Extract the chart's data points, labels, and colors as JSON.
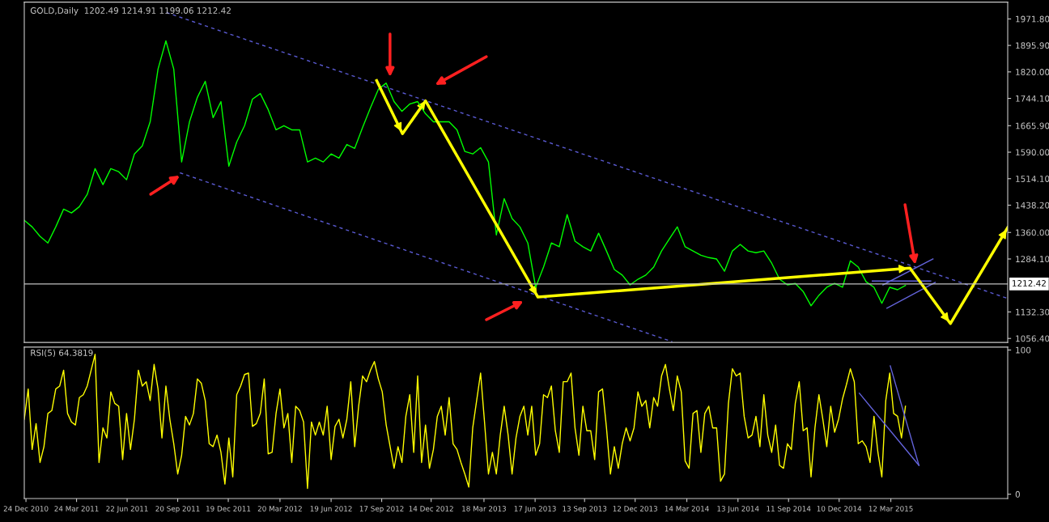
{
  "chart_data": [
    {
      "type": "line",
      "title": "GOLD,Daily  1202.49 1214.91 1199.06 1212.42",
      "xlim": [
        "2010-12-21",
        "2015-10-06"
      ],
      "ylim": [
        1045,
        2020
      ],
      "yticks": [
        {
          "value": 1971.8,
          "label": "1971.80"
        },
        {
          "value": 1895.9,
          "label": "1895.90"
        },
        {
          "value": 1820,
          "label": "1820.00"
        },
        {
          "value": 1744.1,
          "label": "1744.10"
        },
        {
          "value": 1665.9,
          "label": "1665.90"
        },
        {
          "value": 1590,
          "label": "1590.00"
        },
        {
          "value": 1514.1,
          "label": "1514.10"
        },
        {
          "value": 1438.2,
          "label": "1438.20"
        },
        {
          "value": 1360,
          "label": "1360.00"
        },
        {
          "value": 1284.1,
          "label": "1284.10"
        },
        {
          "value": 1132.3,
          "label": "1132.30"
        },
        {
          "value": 1056.4,
          "label": "1056.40"
        }
      ],
      "tick_labels": "y",
      "ref_lines": [
        {
          "axis": "y",
          "value": 1212.42,
          "label": "1212.42",
          "color": "#c0c0c0"
        }
      ],
      "series": [
        {
          "color": "#00ff00",
          "x": [
            "2010-12-21",
            "2011-01-04",
            "2011-01-18",
            "2011-02-01",
            "2011-02-15",
            "2011-03-01",
            "2011-03-15",
            "2011-03-29",
            "2011-04-12",
            "2011-04-26",
            "2011-05-10",
            "2011-05-24",
            "2011-06-07",
            "2011-06-21",
            "2011-07-05",
            "2011-07-19",
            "2011-08-02",
            "2011-08-16",
            "2011-08-30",
            "2011-09-13",
            "2011-09-27",
            "2011-10-11",
            "2011-10-25",
            "2011-11-08",
            "2011-11-22",
            "2011-12-06",
            "2011-12-20",
            "2012-01-03",
            "2012-01-17",
            "2012-01-31",
            "2012-02-14",
            "2012-02-28",
            "2012-03-13",
            "2012-03-27",
            "2012-04-10",
            "2012-04-24",
            "2012-05-08",
            "2012-05-22",
            "2012-06-05",
            "2012-06-19",
            "2012-07-03",
            "2012-07-17",
            "2012-07-31",
            "2012-08-14",
            "2012-08-28",
            "2012-09-11",
            "2012-09-25",
            "2012-10-09",
            "2012-10-23",
            "2012-11-06",
            "2012-11-20",
            "2012-12-04",
            "2012-12-18",
            "2013-01-01",
            "2013-01-15",
            "2013-01-29",
            "2013-02-12",
            "2013-02-26",
            "2013-03-12",
            "2013-03-26",
            "2013-04-09",
            "2013-04-23",
            "2013-05-07",
            "2013-05-21",
            "2013-06-04",
            "2013-06-18",
            "2013-07-02",
            "2013-07-16",
            "2013-07-30",
            "2013-08-13",
            "2013-08-27",
            "2013-09-10",
            "2013-09-24",
            "2013-10-08",
            "2013-10-22",
            "2013-11-05",
            "2013-11-19",
            "2013-12-03",
            "2013-12-17",
            "2013-12-31",
            "2014-01-14",
            "2014-01-28",
            "2014-02-11",
            "2014-02-25",
            "2014-03-11",
            "2014-03-25",
            "2014-04-08",
            "2014-04-22",
            "2014-05-06",
            "2014-05-20",
            "2014-06-03",
            "2014-06-17",
            "2014-07-01",
            "2014-07-15",
            "2014-07-29",
            "2014-08-12",
            "2014-08-26",
            "2014-09-09",
            "2014-09-23",
            "2014-10-07",
            "2014-10-21",
            "2014-11-04",
            "2014-11-18",
            "2014-12-02",
            "2014-12-16",
            "2014-12-30",
            "2015-01-13",
            "2015-01-27",
            "2015-02-10",
            "2015-02-24",
            "2015-03-10",
            "2015-03-24",
            "2015-04-07"
          ],
          "values": [
            1395,
            1376,
            1349,
            1330,
            1376,
            1427,
            1416,
            1434,
            1469,
            1543,
            1497,
            1543,
            1534,
            1511,
            1585,
            1608,
            1677,
            1828,
            1909,
            1828,
            1562,
            1677,
            1747,
            1793,
            1689,
            1735,
            1550,
            1619,
            1666,
            1742,
            1758,
            1712,
            1654,
            1666,
            1654,
            1654,
            1562,
            1573,
            1562,
            1585,
            1573,
            1612,
            1601,
            1661,
            1717,
            1770,
            1788,
            1735,
            1707,
            1728,
            1735,
            1700,
            1677,
            1677,
            1677,
            1654,
            1592,
            1585,
            1603,
            1562,
            1353,
            1457,
            1400,
            1376,
            1330,
            1203,
            1261,
            1330,
            1319,
            1411,
            1335,
            1319,
            1307,
            1358,
            1307,
            1254,
            1238,
            1210,
            1226,
            1238,
            1261,
            1307,
            1342,
            1376,
            1319,
            1307,
            1295,
            1288,
            1284,
            1249,
            1307,
            1326,
            1307,
            1302,
            1307,
            1272,
            1226,
            1210,
            1214,
            1191,
            1150,
            1180,
            1203,
            1214,
            1203,
            1279,
            1261,
            1219,
            1203,
            1157,
            1203,
            1196,
            1208
          ]
        },
        {
          "color": "#5a5ad2",
          "line_style": "dashed",
          "x": [
            "2011-08-31",
            "2015-10-06"
          ],
          "values": [
            1990,
            1171
          ]
        },
        {
          "color": "#5a5ad2",
          "line_style": "dashed",
          "x": [
            "2011-09-24",
            "2014-02-16"
          ],
          "values": [
            1531,
            1047
          ]
        },
        {
          "color": "#6464dc",
          "x": [
            "2015-03-05",
            "2015-05-30"
          ],
          "values": [
            1143,
            1217
          ]
        },
        {
          "color": "#6464dc",
          "x": [
            "2015-02-26",
            "2015-05-26"
          ],
          "values": [
            1210,
            1284
          ]
        },
        {
          "color": "#6464dc",
          "x": [
            "2015-02-07",
            "2015-05-22"
          ],
          "values": [
            1221,
            1221
          ]
        },
        {
          "color": "#ffff00",
          "x": [
            "2012-09-08",
            "2012-10-24",
            "2012-12-04",
            "2013-06-22",
            "2015-04-15",
            "2015-06-26",
            "2015-10-06"
          ],
          "values": [
            1795,
            1643,
            1737,
            1175,
            1258,
            1099,
            1374
          ]
        }
      ]
    },
    {
      "type": "line",
      "title": "RSI(5) 64.3819",
      "xlim": [
        "2010-12-21",
        "2015-10-06"
      ],
      "ylim": [
        -3,
        102
      ],
      "yticks": [
        0,
        100
      ],
      "xticks": [
        {
          "value": "2010-12-24",
          "label": "24 Dec 2010"
        },
        {
          "value": "2011-03-24",
          "label": "24 Mar 2011"
        },
        {
          "value": "2011-06-22",
          "label": "22 Jun 2011"
        },
        {
          "value": "2011-09-20",
          "label": "20 Sep 2011"
        },
        {
          "value": "2011-12-19",
          "label": "19 Dec 2011"
        },
        {
          "value": "2012-03-20",
          "label": "20 Mar 2012"
        },
        {
          "value": "2012-06-19",
          "label": "19 Jun 2012"
        },
        {
          "value": "2012-09-17",
          "label": "17 Sep 2012"
        },
        {
          "value": "2012-12-14",
          "label": "14 Dec 2012"
        },
        {
          "value": "2013-03-18",
          "label": "18 Mar 2013"
        },
        {
          "value": "2013-06-17",
          "label": "17 Jun 2013"
        },
        {
          "value": "2013-09-13",
          "label": "13 Sep 2013"
        },
        {
          "value": "2013-12-12",
          "label": "12 Dec 2013"
        },
        {
          "value": "2014-03-14",
          "label": "14 Mar 2014"
        },
        {
          "value": "2014-06-13",
          "label": "13 Jun 2014"
        },
        {
          "value": "2014-09-11",
          "label": "11 Sep 2014"
        },
        {
          "value": "2014-12-10",
          "label": "10 Dec 2014"
        },
        {
          "value": "2015-03-12",
          "label": "12 Mar 2015"
        }
      ],
      "series": [
        {
          "color": "#ffff00",
          "x": [
            "2010-12-21",
            "2010-12-28",
            "2011-01-04",
            "2011-01-11",
            "2011-01-18",
            "2011-01-25",
            "2011-02-01",
            "2011-02-08",
            "2011-02-15",
            "2011-02-22",
            "2011-03-01",
            "2011-03-08",
            "2011-03-15",
            "2011-03-22",
            "2011-03-29",
            "2011-04-05",
            "2011-04-12",
            "2011-04-19",
            "2011-04-26",
            "2011-05-03",
            "2011-05-10",
            "2011-05-17",
            "2011-05-24",
            "2011-05-31",
            "2011-06-07",
            "2011-06-14",
            "2011-06-21",
            "2011-06-28",
            "2011-07-05",
            "2011-07-12",
            "2011-07-19",
            "2011-07-26",
            "2011-08-02",
            "2011-08-09",
            "2011-08-16",
            "2011-08-23",
            "2011-08-30",
            "2011-09-06",
            "2011-09-13",
            "2011-09-20",
            "2011-09-27",
            "2011-10-04",
            "2011-10-11",
            "2011-10-18",
            "2011-10-25",
            "2011-11-01",
            "2011-11-08",
            "2011-11-15",
            "2011-11-22",
            "2011-11-29",
            "2011-12-06",
            "2011-12-13",
            "2011-12-20",
            "2011-12-27",
            "2012-01-03",
            "2012-01-10",
            "2012-01-17",
            "2012-01-24",
            "2012-01-31",
            "2012-02-07",
            "2012-02-14",
            "2012-02-21",
            "2012-02-28",
            "2012-03-06",
            "2012-03-13",
            "2012-03-20",
            "2012-03-27",
            "2012-04-03",
            "2012-04-10",
            "2012-04-17",
            "2012-04-24",
            "2012-05-01",
            "2012-05-08",
            "2012-05-15",
            "2012-05-22",
            "2012-05-29",
            "2012-06-05",
            "2012-06-12",
            "2012-06-19",
            "2012-06-26",
            "2012-07-03",
            "2012-07-10",
            "2012-07-17",
            "2012-07-24",
            "2012-07-31",
            "2012-08-07",
            "2012-08-14",
            "2012-08-21",
            "2012-08-28",
            "2012-09-04",
            "2012-09-11",
            "2012-09-18",
            "2012-09-25",
            "2012-10-02",
            "2012-10-09",
            "2012-10-16",
            "2012-10-23",
            "2012-10-30",
            "2012-11-06",
            "2012-11-13",
            "2012-11-20",
            "2012-11-27",
            "2012-12-04",
            "2012-12-11",
            "2012-12-18",
            "2012-12-25",
            "2013-01-01",
            "2013-01-08",
            "2013-01-15",
            "2013-01-22",
            "2013-01-29",
            "2013-02-05",
            "2013-02-12",
            "2013-02-19",
            "2013-02-26",
            "2013-03-05",
            "2013-03-12",
            "2013-03-19",
            "2013-03-26",
            "2013-04-02",
            "2013-04-09",
            "2013-04-16",
            "2013-04-23",
            "2013-04-30",
            "2013-05-07",
            "2013-05-14",
            "2013-05-21",
            "2013-05-28",
            "2013-06-04",
            "2013-06-11",
            "2013-06-18",
            "2013-06-25",
            "2013-07-02",
            "2013-07-09",
            "2013-07-16",
            "2013-07-23",
            "2013-07-30",
            "2013-08-06",
            "2013-08-13",
            "2013-08-20",
            "2013-08-27",
            "2013-09-03",
            "2013-09-10",
            "2013-09-17",
            "2013-09-24",
            "2013-10-01",
            "2013-10-08",
            "2013-10-15",
            "2013-10-22",
            "2013-10-29",
            "2013-11-05",
            "2013-11-12",
            "2013-11-19",
            "2013-11-26",
            "2013-12-03",
            "2013-12-10",
            "2013-12-17",
            "2013-12-24",
            "2013-12-31",
            "2014-01-07",
            "2014-01-14",
            "2014-01-21",
            "2014-01-28",
            "2014-02-04",
            "2014-02-11",
            "2014-02-18",
            "2014-02-25",
            "2014-03-04",
            "2014-03-11",
            "2014-03-18",
            "2014-03-25",
            "2014-04-01",
            "2014-04-08",
            "2014-04-15",
            "2014-04-22",
            "2014-04-29",
            "2014-05-06",
            "2014-05-13",
            "2014-05-20",
            "2014-05-27",
            "2014-06-03",
            "2014-06-10",
            "2014-06-17",
            "2014-06-24",
            "2014-07-01",
            "2014-07-08",
            "2014-07-15",
            "2014-07-22",
            "2014-07-29",
            "2014-08-05",
            "2014-08-12",
            "2014-08-19",
            "2014-08-26",
            "2014-09-02",
            "2014-09-09",
            "2014-09-16",
            "2014-09-23",
            "2014-09-30",
            "2014-10-07",
            "2014-10-14",
            "2014-10-21",
            "2014-10-28",
            "2014-11-04",
            "2014-11-11",
            "2014-11-18",
            "2014-11-25",
            "2014-12-02",
            "2014-12-09",
            "2014-12-16",
            "2014-12-23",
            "2014-12-30",
            "2015-01-06",
            "2015-01-13",
            "2015-01-20",
            "2015-01-27",
            "2015-02-03",
            "2015-02-10",
            "2015-02-17",
            "2015-02-24",
            "2015-03-03",
            "2015-03-10",
            "2015-03-17",
            "2015-03-24",
            "2015-03-31",
            "2015-04-07"
          ],
          "values": [
            52,
            73,
            31,
            49,
            22,
            33,
            56,
            58,
            73,
            75,
            86,
            56,
            50,
            48,
            67,
            69,
            75,
            86,
            97,
            22,
            46,
            39,
            71,
            63,
            61,
            24,
            56,
            31,
            52,
            86,
            75,
            78,
            65,
            90,
            73,
            39,
            75,
            52,
            35,
            14,
            27,
            54,
            48,
            56,
            80,
            77,
            65,
            35,
            33,
            41,
            29,
            7,
            39,
            12,
            69,
            75,
            83,
            84,
            47,
            49,
            56,
            80,
            28,
            29,
            56,
            73,
            46,
            56,
            22,
            61,
            58,
            50,
            4,
            50,
            41,
            50,
            41,
            61,
            24,
            47,
            52,
            39,
            52,
            78,
            33,
            61,
            82,
            78,
            86,
            92,
            80,
            71,
            48,
            33,
            18,
            33,
            22,
            54,
            69,
            29,
            82,
            22,
            48,
            18,
            31,
            54,
            61,
            41,
            67,
            35,
            31,
            22,
            14,
            5,
            46,
            65,
            84,
            50,
            14,
            29,
            14,
            41,
            61,
            41,
            14,
            39,
            54,
            61,
            41,
            61,
            27,
            35,
            69,
            67,
            75,
            44,
            29,
            78,
            78,
            84,
            46,
            27,
            61,
            44,
            44,
            24,
            71,
            73,
            46,
            14,
            33,
            18,
            35,
            46,
            37,
            46,
            71,
            61,
            65,
            46,
            67,
            61,
            82,
            90,
            73,
            58,
            82,
            71,
            23,
            18,
            56,
            58,
            29,
            56,
            61,
            46,
            46,
            9,
            14,
            63,
            87,
            82,
            84,
            54,
            39,
            41,
            54,
            33,
            69,
            41,
            29,
            48,
            20,
            18,
            35,
            31,
            63,
            78,
            44,
            46,
            12,
            46,
            69,
            52,
            33,
            61,
            43,
            52,
            66,
            76,
            87,
            78,
            35,
            37,
            33,
            22,
            54,
            29,
            12,
            65,
            84,
            56,
            54,
            39,
            61
          ]
        },
        {
          "color": "#6464dc",
          "x": [
            "2015-01-15",
            "2015-05-01"
          ],
          "values": [
            70,
            20
          ]
        },
        {
          "color": "#6464dc",
          "x": [
            "2015-03-11",
            "2015-05-01"
          ],
          "values": [
            89,
            20
          ]
        }
      ]
    }
  ]
}
